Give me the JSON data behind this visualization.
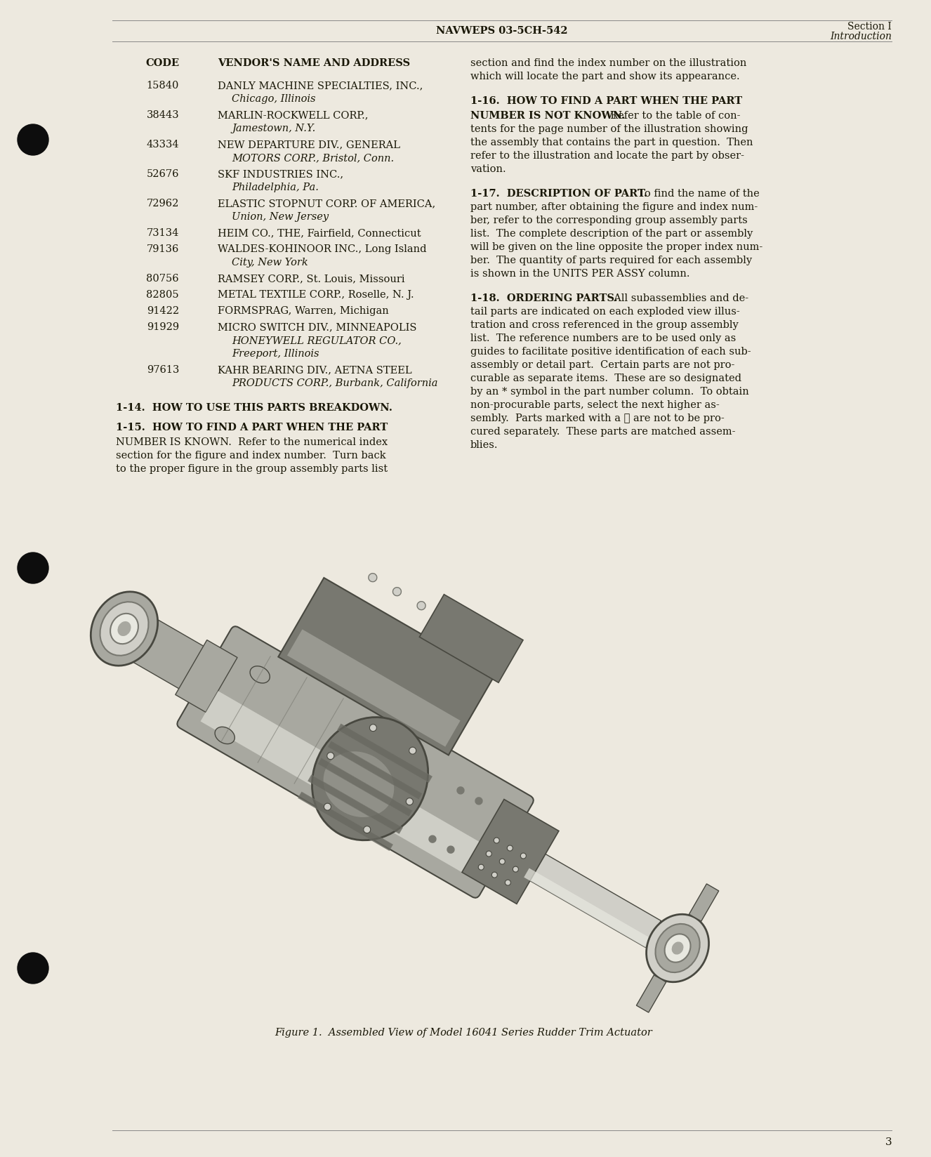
{
  "page_background": "#ede9df",
  "header_doc_number": "NAVWEPS 03-5CH-542",
  "header_section": "Section I",
  "header_subsection": "Introduction",
  "page_number": "3",
  "vendor_table_header_code": "CODE",
  "vendor_table_header_name": "VENDOR'S NAME AND ADDRESS",
  "vendors_raw": [
    [
      "15840",
      [
        "DANLY MACHINE SPECIALTIES, INC.,",
        "   Chicago, Illinois"
      ]
    ],
    [
      "38443",
      [
        "MARLIN-ROCKWELL CORP.,",
        "   Jamestown, N.Y."
      ]
    ],
    [
      "43334",
      [
        "NEW DEPARTURE DIV., GENERAL",
        "   MOTORS CORP., Bristol, Conn."
      ]
    ],
    [
      "52676",
      [
        "SKF INDUSTRIES INC.,",
        "   Philadelphia, Pa."
      ]
    ],
    [
      "72962",
      [
        "ELASTIC STOPNUT CORP. OF AMERICA,",
        "   Union, New Jersey"
      ]
    ],
    [
      "73134",
      [
        "HEIM CO., THE, Fairfield, Connecticut"
      ]
    ],
    [
      "79136",
      [
        "WALDES-KOHINOOR INC., Long Island",
        "   City, New York"
      ]
    ],
    [
      "80756",
      [
        "RAMSEY CORP., St. Louis, Missouri"
      ]
    ],
    [
      "82805",
      [
        "METAL TEXTILE CORP., Roselle, N. J."
      ]
    ],
    [
      "91422",
      [
        "FORMSPRAG, Warren, Michigan"
      ]
    ],
    [
      "91929",
      [
        "MICRO SWITCH DIV., MINNEAPOLIS",
        "   HONEYWELL REGULATOR CO.,",
        "   Freeport, Illinois"
      ]
    ],
    [
      "97613",
      [
        "KAHR BEARING DIV., AETNA STEEL",
        "   PRODUCTS CORP., Burbank, California"
      ]
    ]
  ],
  "left_col_sections": [
    {
      "heading": "1-14.  HOW TO USE THIS PARTS BREAKDOWN.",
      "body": []
    },
    {
      "heading": "1-15.  HOW TO FIND A PART WHEN THE PART",
      "body": [
        "NUMBER IS KNOWN.  Refer to the numerical index",
        "section for the figure and index number.  Turn back",
        "to the proper figure in the group assembly parts list"
      ]
    }
  ],
  "right_col_sections": [
    {
      "heading": "",
      "body": [
        "section and find the index number on the illustration",
        "which will locate the part and show its appearance."
      ]
    },
    {
      "heading": "1-16.  HOW TO FIND A PART WHEN THE PART",
      "body": [
        "NUMBER IS NOT KNOWN.  Refer to the table of con-",
        "tents for the page number of the illustration showing",
        "the assembly that contains the part in question.  Then",
        "refer to the illustration and locate the part by obser-",
        "vation."
      ]
    },
    {
      "heading": "1-17.  DESCRIPTION OF PART.  To find the name of the",
      "body": [
        "part number, after obtaining the figure and index num-",
        "ber, refer to the corresponding group assembly parts",
        "list.  The complete description of the part or assembly",
        "will be given on the line opposite the proper index num-",
        "ber.  The quantity of parts required for each assembly",
        "is shown in the UNITS PER ASSY column."
      ]
    },
    {
      "heading": "1-18.  ORDERING PARTS.  All subassemblies and de-",
      "body": [
        "tail parts are indicated on each exploded view illus-",
        "tration and cross referenced in the group assembly",
        "list.  The reference numbers are to be used only as",
        "guides to facilitate positive identification of each sub-",
        "assembly or detail part.  Certain parts are not pro-",
        "curable as separate items.  These are so designated",
        "by an * symbol in the part number column.  To obtain",
        "non-procurable parts, select the next higher as-",
        "sembly.  Parts marked with a ℓ are not to be pro-",
        "cured separately.  These parts are matched assem-",
        "blies."
      ]
    }
  ],
  "figure_caption": "Figure 1.  Assembled View of Model 16041 Series Rudder Trim Actuator",
  "text_color": "#1a1808",
  "bg_color": "#ede9df"
}
